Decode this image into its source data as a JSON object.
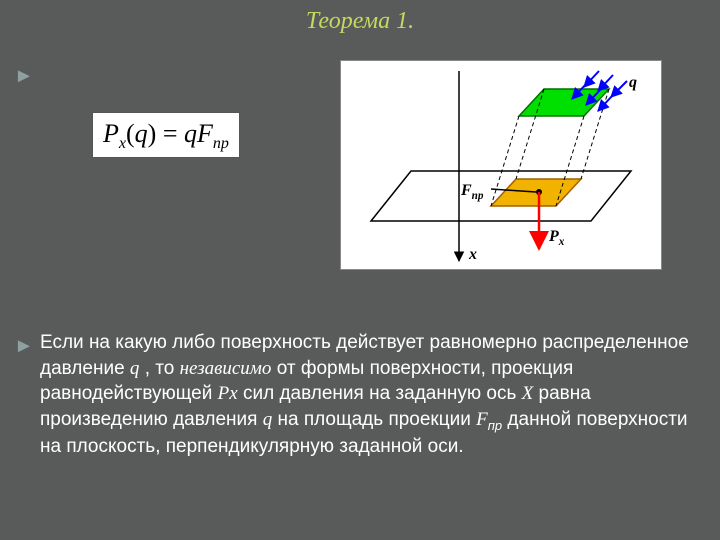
{
  "title": "Теорема 1.",
  "title_color": "#c6d85f",
  "formula": {
    "lhs_P": "P",
    "lhs_x": "x",
    "arg_q": "q",
    "eq": "=",
    "rhs_q": "q",
    "rhs_F": "F",
    "rhs_np": "np"
  },
  "paragraph": {
    "t1": "Если на какую либо поверхность действует равномерно распределенное давление ",
    "q1": "q",
    "t2": " , то ",
    "independ": "независимо",
    "t3": "  от формы поверхности, проекция равнодействующей ",
    "Px_P": "P",
    "Px_x": "x",
    "t4": " сил давления на заданную ось ",
    "X": "X",
    "t5": " равна произведению давления ",
    "q2": "q",
    "t6": "  на площадь проекции ",
    "F": "F",
    "np": "пр",
    "t7": " данной поверхности на плоскость, перпендикулярную заданной оси."
  },
  "diagram": {
    "background": "#ffffff",
    "plane_stroke": "#000000",
    "axis_stroke": "#000000",
    "dash_stroke": "#000000",
    "top_surface_fill": "#00e000",
    "top_surface_stroke": "#007000",
    "proj_fill": "#f2b200",
    "proj_stroke": "#a06000",
    "arrow_red": "#ff0000",
    "arrow_blue": "#0000ff",
    "label_color": "#000000",
    "label_q": "q",
    "label_Fnp_F": "F",
    "label_Fnp_np": "np",
    "label_Px_P": "P",
    "label_Px_x": "x",
    "label_x": "x",
    "label_fontsize": 16
  },
  "bullet_glyph": "►"
}
